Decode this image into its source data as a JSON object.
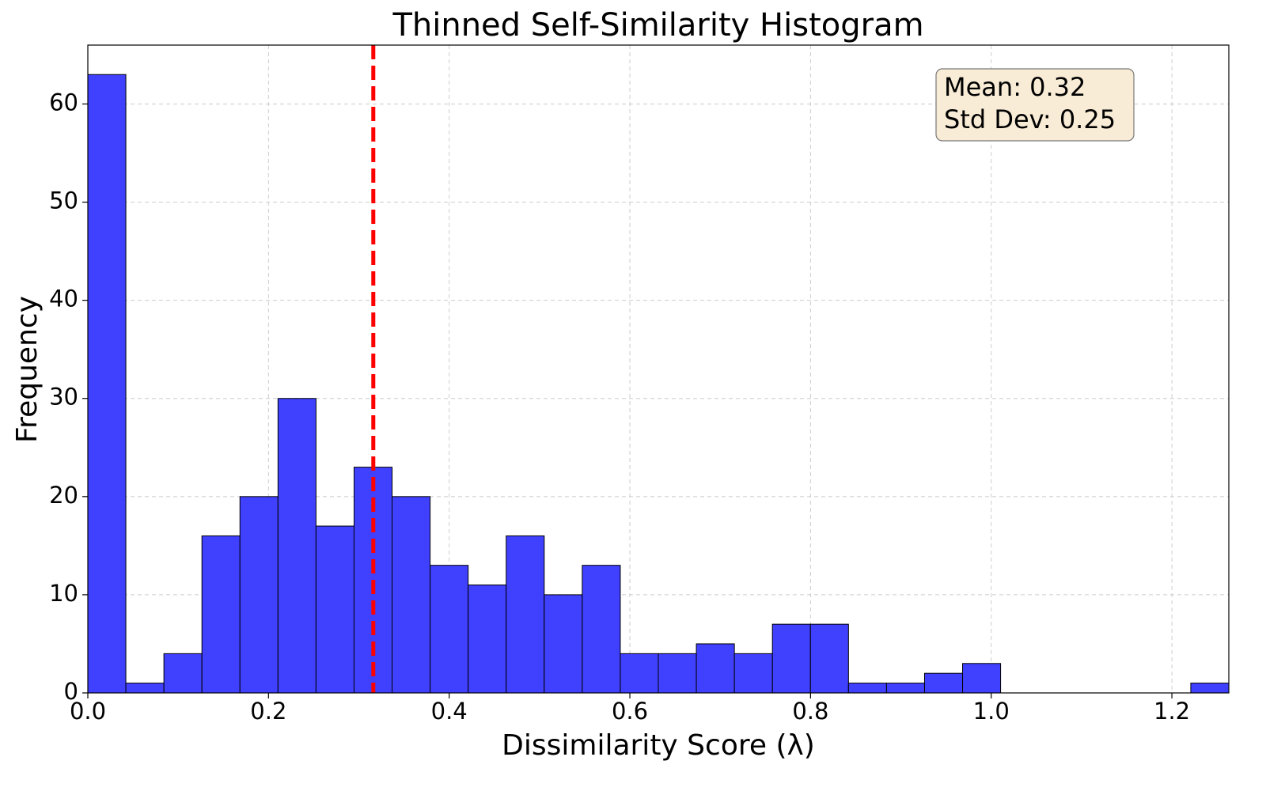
{
  "chart_data": {
    "type": "histogram",
    "title": "Thinned Self-Similarity Histogram",
    "x_label": "Dissimilarity Score (λ)",
    "y_label": "Frequency",
    "bins": [
      0,
      0.0421,
      0.0842,
      0.1263,
      0.1684,
      0.2105,
      0.2526,
      0.2947,
      0.3368,
      0.3789,
      0.421,
      0.4631,
      0.5052,
      0.5473,
      0.5894,
      0.6315,
      0.6736,
      0.7157,
      0.7578,
      0.7999,
      0.842,
      0.8841,
      0.9262,
      0.9683,
      1.0104,
      1.0525,
      1.0946,
      1.1367,
      1.1788,
      1.2209,
      1.263
    ],
    "values": [
      63,
      1,
      4,
      16,
      20,
      30,
      17,
      23,
      20,
      13,
      11,
      16,
      10,
      13,
      4,
      4,
      5,
      4,
      7,
      7,
      1,
      1,
      2,
      3,
      0,
      0,
      0,
      0,
      0,
      1
    ],
    "color": "#4040ff",
    "edge_color": "#000000",
    "mean_line": 0.316,
    "mean_line_color": "#ff0000",
    "annotation": [
      "Mean: 0.32",
      "Std Dev: 0.25"
    ],
    "xlim": [
      0,
      1.263
    ],
    "ylim": [
      0,
      66
    ],
    "xticks": [
      {
        "value": 0,
        "label": "0.0"
      },
      0.2,
      0.4,
      0.6,
      0.8,
      {
        "value": 1,
        "label": "1.0"
      },
      1.2
    ],
    "yticks": [
      0,
      10,
      20,
      30,
      40,
      50,
      60
    ],
    "grid": true
  }
}
